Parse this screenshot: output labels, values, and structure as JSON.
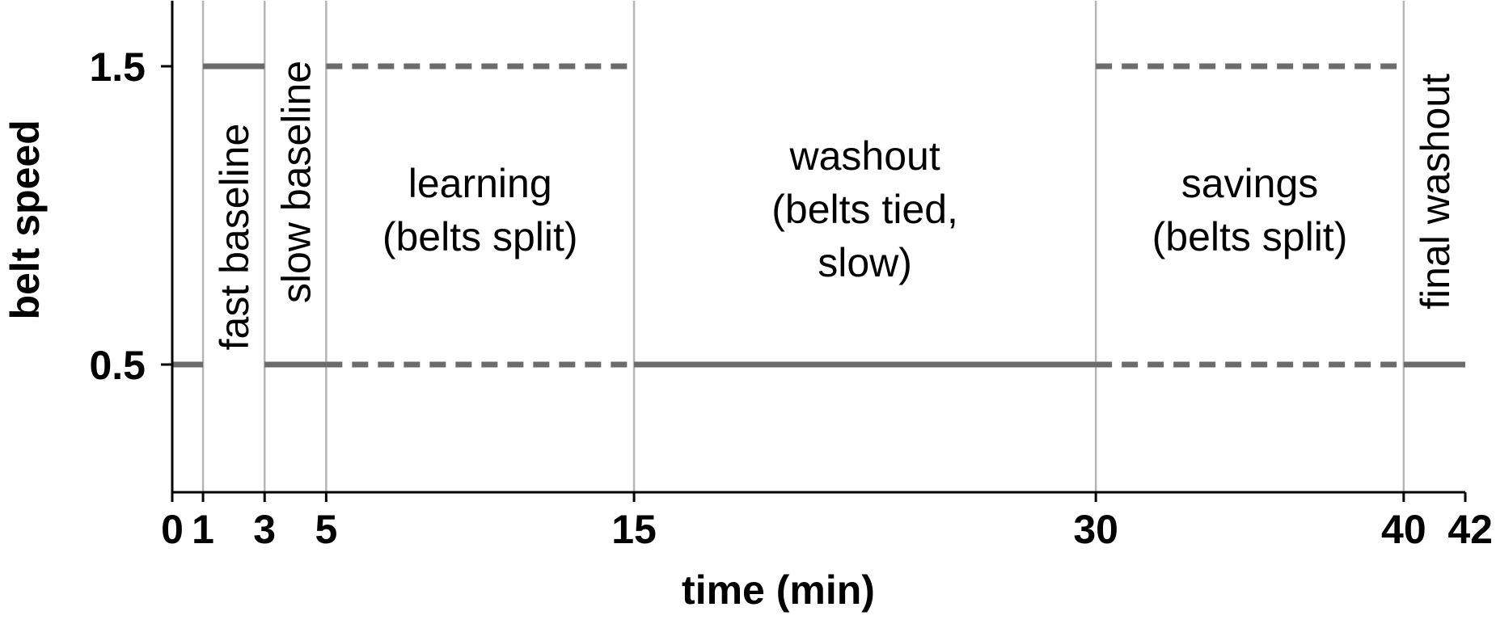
{
  "chart_data": {
    "type": "line",
    "xlabel": "time (min)",
    "ylabel": "belt speed",
    "xlim": [
      0,
      42
    ],
    "ylim": [
      0.08,
      1.72
    ],
    "x_ticks": [
      0,
      1,
      3,
      5,
      15,
      30,
      40,
      42
    ],
    "x_tick_labels": [
      "0",
      "1",
      "3",
      "5",
      "15",
      "30",
      "40",
      "42"
    ],
    "y_ticks": [
      0.5,
      1.5
    ],
    "y_tick_labels": [
      "0.5",
      "1.5"
    ],
    "phase_boundaries": [
      1,
      3,
      5,
      15,
      30,
      40
    ],
    "line_color": "#6b6b6b",
    "boundary_color": "#b5b5b5",
    "segments": [
      {
        "x": [
          0,
          1
        ],
        "y": 0.5,
        "style": "solid"
      },
      {
        "x": [
          1,
          3
        ],
        "y": 1.5,
        "style": "solid"
      },
      {
        "x": [
          3,
          5
        ],
        "y": 0.5,
        "style": "solid"
      },
      {
        "x": [
          5,
          15
        ],
        "y": 1.5,
        "style": "dashed"
      },
      {
        "x": [
          5,
          15
        ],
        "y": 0.5,
        "style": "dashed"
      },
      {
        "x": [
          15,
          30
        ],
        "y": 0.5,
        "style": "solid"
      },
      {
        "x": [
          30,
          40
        ],
        "y": 1.5,
        "style": "dashed"
      },
      {
        "x": [
          30,
          40
        ],
        "y": 0.5,
        "style": "dashed"
      },
      {
        "x": [
          40,
          42
        ],
        "y": 0.5,
        "style": "solid"
      }
    ],
    "phases": [
      {
        "name": "fast-baseline",
        "lines": [
          "fast baseline"
        ],
        "orientation": "vertical",
        "x_range": [
          1,
          3
        ]
      },
      {
        "name": "slow-baseline",
        "lines": [
          "slow baseline"
        ],
        "orientation": "vertical",
        "x_range": [
          3,
          5
        ]
      },
      {
        "name": "learning",
        "lines": [
          "learning",
          "(belts split)"
        ],
        "orientation": "horizontal",
        "x_range": [
          5,
          15
        ]
      },
      {
        "name": "washout",
        "lines": [
          "washout",
          "(belts tied,",
          "slow)"
        ],
        "orientation": "horizontal",
        "x_range": [
          15,
          30
        ]
      },
      {
        "name": "savings",
        "lines": [
          "savings",
          "(belts split)"
        ],
        "orientation": "horizontal",
        "x_range": [
          30,
          40
        ]
      },
      {
        "name": "final-washout",
        "lines": [
          "final washout"
        ],
        "orientation": "vertical",
        "x_range": [
          40,
          42
        ]
      }
    ]
  }
}
